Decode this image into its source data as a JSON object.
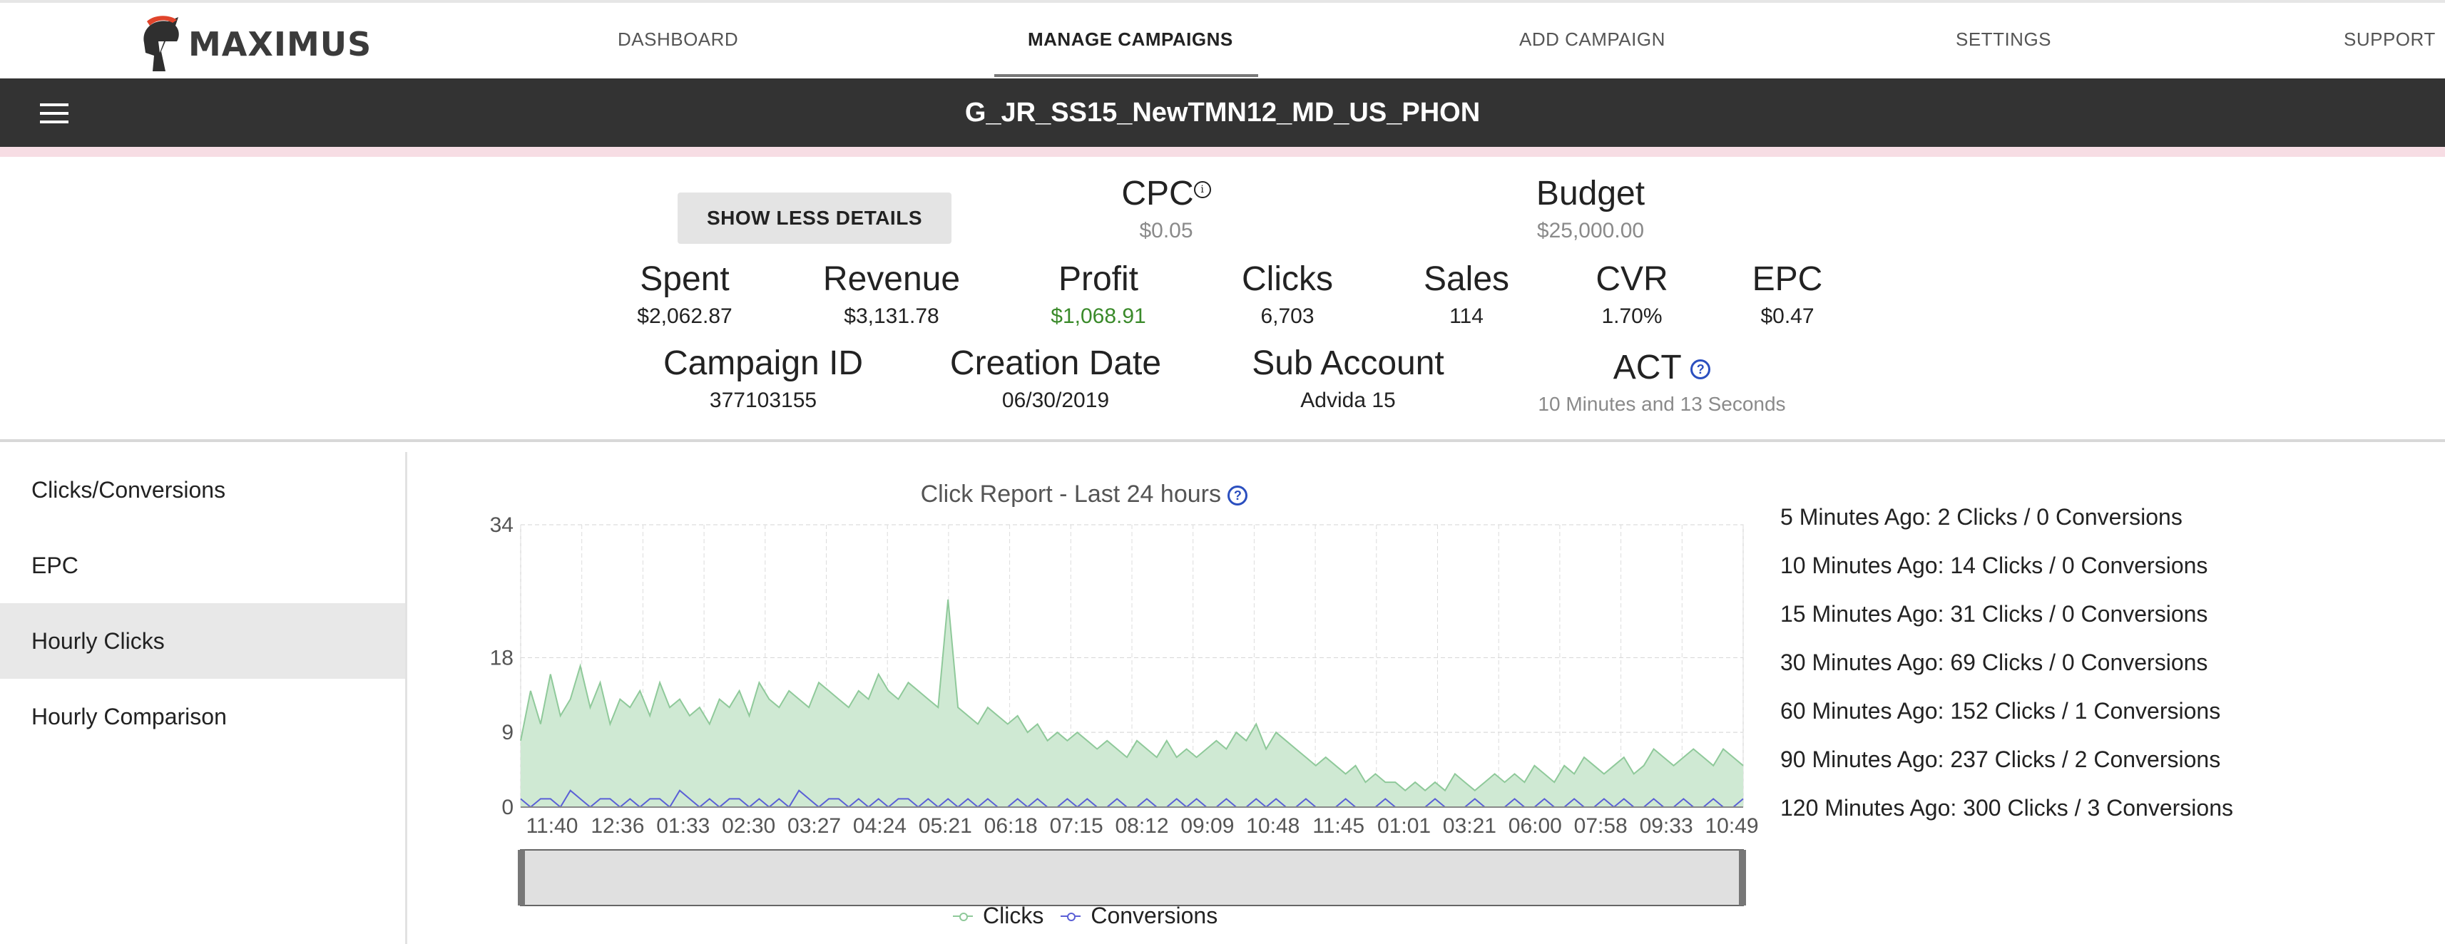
{
  "brand": {
    "name": "MAXIMUS"
  },
  "nav": {
    "items": [
      "DASHBOARD",
      "MANAGE CAMPAIGNS",
      "ADD CAMPAIGN",
      "SETTINGS",
      "SUPPORT"
    ],
    "active": "MANAGE CAMPAIGNS"
  },
  "campaign": {
    "title": "G_JR_SS15_NewTMN12_MD_US_PHON"
  },
  "details": {
    "show_less_label": "SHOW LESS DETAILS",
    "cpc": {
      "label": "CPC",
      "value": "$0.05"
    },
    "budget": {
      "label": "Budget",
      "value": "$25,000.00"
    },
    "spent": {
      "label": "Spent",
      "value": "$2,062.87"
    },
    "revenue": {
      "label": "Revenue",
      "value": "$3,131.78"
    },
    "profit": {
      "label": "Profit",
      "value": "$1,068.91"
    },
    "clicks": {
      "label": "Clicks",
      "value": "6,703"
    },
    "sales": {
      "label": "Sales",
      "value": "114"
    },
    "cvr": {
      "label": "CVR",
      "value": "1.70%"
    },
    "epc": {
      "label": "EPC",
      "value": "$0.47"
    },
    "campaign_id": {
      "label": "Campaign ID",
      "value": "377103155"
    },
    "creation_date": {
      "label": "Creation Date",
      "value": "06/30/2019"
    },
    "sub_account": {
      "label": "Sub Account",
      "value": "Advida 15"
    },
    "act": {
      "label": "ACT",
      "value": "10 Minutes and 13 Seconds"
    }
  },
  "sidebar": {
    "items": [
      {
        "label": "Clicks/Conversions",
        "active": false
      },
      {
        "label": "EPC",
        "active": false
      },
      {
        "label": "Hourly Clicks",
        "active": true
      },
      {
        "label": "Hourly Comparison",
        "active": false
      }
    ]
  },
  "recent_stats": [
    "5 Minutes Ago: 2 Clicks / 0 Conversions",
    "10 Minutes Ago: 14 Clicks / 0 Conversions",
    "15 Minutes Ago: 31 Clicks / 0 Conversions",
    "30 Minutes Ago: 69 Clicks / 0 Conversions",
    "60 Minutes Ago: 152 Clicks / 1 Conversions",
    "90 Minutes Ago: 237 Clicks / 2 Conversions",
    "120 Minutes Ago: 300 Clicks / 3 Conversions"
  ],
  "colors": {
    "clicks": "#8fc99a",
    "clicks_fill": "#cfe9d3",
    "conversions": "#5a5fd6",
    "titlebar": "#333333",
    "profit": "#3a8a2a"
  },
  "chart_data": {
    "type": "area",
    "title": "Click Report - Last 24 hours",
    "x_ticks": [
      "11:40",
      "12:36",
      "01:33",
      "02:30",
      "03:27",
      "04:24",
      "05:21",
      "06:18",
      "07:15",
      "08:12",
      "09:09",
      "10:48",
      "11:45",
      "01:01",
      "03:21",
      "06:00",
      "07:58",
      "09:33",
      "10:49"
    ],
    "y_ticks": [
      0,
      9,
      18,
      34
    ],
    "ylim": [
      0,
      34
    ],
    "grid": true,
    "legend_position": "bottom",
    "series": [
      {
        "name": "Clicks",
        "values": [
          8,
          14,
          10,
          16,
          11,
          13,
          17,
          12,
          15,
          10,
          13,
          12,
          14,
          11,
          15,
          12,
          13,
          11,
          12,
          10,
          13,
          12,
          14,
          11,
          15,
          13,
          12,
          14,
          13,
          12,
          15,
          14,
          13,
          12,
          14,
          13,
          16,
          14,
          13,
          15,
          14,
          13,
          12,
          25,
          12,
          11,
          10,
          12,
          11,
          10,
          11,
          9,
          10,
          8,
          9,
          8,
          9,
          8,
          7,
          8,
          7,
          6,
          8,
          7,
          6,
          8,
          6,
          7,
          6,
          7,
          8,
          7,
          9,
          8,
          10,
          7,
          9,
          8,
          7,
          6,
          5,
          6,
          5,
          4,
          5,
          3,
          4,
          3,
          3,
          2,
          3,
          2,
          3,
          2,
          4,
          3,
          2,
          3,
          4,
          3,
          4,
          3,
          5,
          4,
          3,
          5,
          4,
          6,
          5,
          4,
          5,
          6,
          4,
          5,
          7,
          6,
          5,
          6,
          7,
          6,
          5,
          7,
          6,
          5
        ]
      },
      {
        "name": "Conversions",
        "values": [
          1,
          0,
          1,
          1,
          0,
          2,
          1,
          0,
          1,
          1,
          0,
          1,
          0,
          1,
          1,
          0,
          2,
          1,
          0,
          1,
          0,
          1,
          1,
          0,
          1,
          0,
          1,
          0,
          2,
          1,
          0,
          1,
          1,
          0,
          1,
          0,
          1,
          0,
          1,
          1,
          0,
          1,
          0,
          1,
          0,
          1,
          0,
          1,
          0,
          0,
          1,
          0,
          1,
          0,
          0,
          1,
          0,
          1,
          0,
          0,
          1,
          0,
          0,
          1,
          0,
          0,
          1,
          0,
          1,
          0,
          0,
          1,
          0,
          0,
          1,
          0,
          1,
          0,
          0,
          1,
          0,
          0,
          0,
          1,
          0,
          0,
          0,
          1,
          0,
          0,
          0,
          0,
          1,
          0,
          0,
          0,
          1,
          0,
          0,
          0,
          1,
          0,
          0,
          1,
          0,
          0,
          1,
          0,
          0,
          1,
          0,
          1,
          0,
          0,
          1,
          0,
          0,
          1,
          0,
          0,
          1,
          0,
          0,
          1
        ]
      }
    ]
  }
}
